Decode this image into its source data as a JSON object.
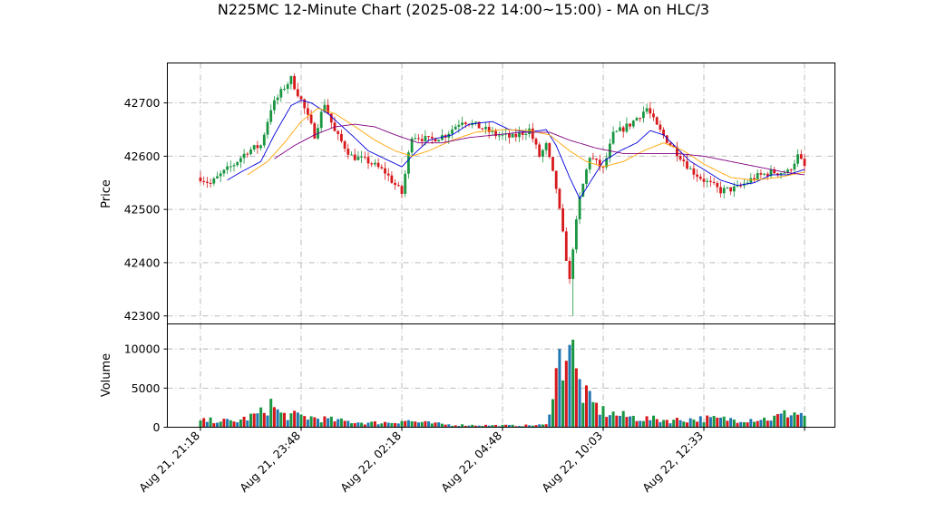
{
  "chart_data": {
    "type": "candlestick",
    "title": "N225MC 12-Minute Chart (2025-08-22 14:00~15:00) - MA on HLC/3",
    "price_panel": {
      "ylabel": "Price",
      "ylim": [
        42285,
        42775
      ],
      "yticks": [
        42300,
        42400,
        42500,
        42600,
        42700
      ],
      "ytick_labels": [
        "42300",
        "42400",
        "42500",
        "42600",
        "42700"
      ]
    },
    "volume_panel": {
      "ylabel": "Volume",
      "ylim": [
        0,
        13200
      ],
      "yticks": [
        0,
        5000,
        10000
      ],
      "ytick_labels": [
        "0",
        "5000",
        "10000"
      ]
    },
    "x": {
      "bars_total": 180,
      "ticks": [
        {
          "bar": 0,
          "label": "Aug 21, 21:18"
        },
        {
          "bar": 30,
          "label": "Aug 21, 23:48"
        },
        {
          "bar": 60,
          "label": "Aug 22, 02:18"
        },
        {
          "bar": 90,
          "label": "Aug 22, 04:48"
        },
        {
          "bar": 120,
          "label": "Aug 22, 10:03"
        },
        {
          "bar": 150,
          "label": "Aug 22, 12:33"
        },
        {
          "bar": 180,
          "label": ""
        }
      ]
    },
    "colors": {
      "up": "#1a9641",
      "down": "#d7191c",
      "ma_short": "#0000dd",
      "ma_mid": "#ffa500",
      "ma_long": "#800080",
      "volume_alt": "#1f77b4"
    },
    "close_anchors": [
      [
        0,
        42560
      ],
      [
        3,
        42548
      ],
      [
        6,
        42565
      ],
      [
        10,
        42585
      ],
      [
        14,
        42610
      ],
      [
        18,
        42620
      ],
      [
        21,
        42690
      ],
      [
        25,
        42730
      ],
      [
        27,
        42745
      ],
      [
        30,
        42705
      ],
      [
        34,
        42640
      ],
      [
        37,
        42700
      ],
      [
        40,
        42645
      ],
      [
        45,
        42600
      ],
      [
        50,
        42590
      ],
      [
        55,
        42570
      ],
      [
        60,
        42530
      ],
      [
        63,
        42640
      ],
      [
        68,
        42630
      ],
      [
        73,
        42640
      ],
      [
        78,
        42668
      ],
      [
        83,
        42655
      ],
      [
        88,
        42640
      ],
      [
        93,
        42635
      ],
      [
        98,
        42650
      ],
      [
        101,
        42600
      ],
      [
        103,
        42620
      ],
      [
        106,
        42540
      ],
      [
        110,
        42365
      ],
      [
        111,
        42430
      ],
      [
        113,
        42520
      ],
      [
        116,
        42600
      ],
      [
        120,
        42575
      ],
      [
        123,
        42640
      ],
      [
        128,
        42660
      ],
      [
        133,
        42690
      ],
      [
        136,
        42655
      ],
      [
        139,
        42630
      ],
      [
        143,
        42600
      ],
      [
        146,
        42575
      ],
      [
        150,
        42555
      ],
      [
        155,
        42535
      ],
      [
        160,
        42540
      ],
      [
        165,
        42560
      ],
      [
        170,
        42570
      ],
      [
        175,
        42570
      ],
      [
        178,
        42600
      ],
      [
        180,
        42580
      ]
    ],
    "ma_short_anchors": [
      [
        8,
        42555
      ],
      [
        12,
        42570
      ],
      [
        18,
        42590
      ],
      [
        22,
        42640
      ],
      [
        27,
        42695
      ],
      [
        30,
        42705
      ],
      [
        33,
        42700
      ],
      [
        38,
        42680
      ],
      [
        45,
        42640
      ],
      [
        50,
        42610
      ],
      [
        55,
        42595
      ],
      [
        60,
        42580
      ],
      [
        63,
        42600
      ],
      [
        68,
        42630
      ],
      [
        75,
        42640
      ],
      [
        80,
        42660
      ],
      [
        87,
        42665
      ],
      [
        92,
        42650
      ],
      [
        98,
        42645
      ],
      [
        103,
        42650
      ],
      [
        106,
        42620
      ],
      [
        110,
        42560
      ],
      [
        113,
        42520
      ],
      [
        117,
        42560
      ],
      [
        120,
        42590
      ],
      [
        125,
        42610
      ],
      [
        130,
        42625
      ],
      [
        134,
        42648
      ],
      [
        138,
        42640
      ],
      [
        142,
        42615
      ],
      [
        146,
        42590
      ],
      [
        150,
        42575
      ],
      [
        155,
        42555
      ],
      [
        160,
        42545
      ],
      [
        165,
        42550
      ],
      [
        170,
        42565
      ],
      [
        175,
        42565
      ],
      [
        180,
        42575
      ]
    ],
    "ma_mid_anchors": [
      [
        14,
        42565
      ],
      [
        20,
        42590
      ],
      [
        25,
        42625
      ],
      [
        30,
        42665
      ],
      [
        35,
        42690
      ],
      [
        40,
        42680
      ],
      [
        45,
        42660
      ],
      [
        52,
        42630
      ],
      [
        58,
        42610
      ],
      [
        63,
        42600
      ],
      [
        68,
        42610
      ],
      [
        75,
        42630
      ],
      [
        82,
        42645
      ],
      [
        90,
        42650
      ],
      [
        98,
        42648
      ],
      [
        104,
        42640
      ],
      [
        110,
        42610
      ],
      [
        115,
        42590
      ],
      [
        120,
        42580
      ],
      [
        126,
        42590
      ],
      [
        132,
        42610
      ],
      [
        138,
        42625
      ],
      [
        144,
        42610
      ],
      [
        150,
        42585
      ],
      [
        158,
        42560
      ],
      [
        165,
        42555
      ],
      [
        172,
        42560
      ],
      [
        180,
        42570
      ]
    ],
    "ma_long_anchors": [
      [
        22,
        42595
      ],
      [
        28,
        42620
      ],
      [
        34,
        42640
      ],
      [
        40,
        42655
      ],
      [
        46,
        42660
      ],
      [
        52,
        42655
      ],
      [
        58,
        42640
      ],
      [
        65,
        42625
      ],
      [
        72,
        42625
      ],
      [
        80,
        42635
      ],
      [
        88,
        42640
      ],
      [
        96,
        42645
      ],
      [
        104,
        42645
      ],
      [
        110,
        42630
      ],
      [
        118,
        42615
      ],
      [
        126,
        42605
      ],
      [
        134,
        42605
      ],
      [
        142,
        42605
      ],
      [
        150,
        42600
      ],
      [
        158,
        42590
      ],
      [
        166,
        42580
      ],
      [
        174,
        42570
      ],
      [
        180,
        42565
      ]
    ],
    "volume_profile": [
      [
        0,
        800
      ],
      [
        5,
        900
      ],
      [
        10,
        700
      ],
      [
        14,
        1200
      ],
      [
        18,
        1800
      ],
      [
        21,
        3000
      ],
      [
        24,
        1600
      ],
      [
        30,
        1400
      ],
      [
        36,
        1100
      ],
      [
        42,
        800
      ],
      [
        50,
        550
      ],
      [
        58,
        650
      ],
      [
        60,
        900
      ],
      [
        66,
        600
      ],
      [
        75,
        300
      ],
      [
        85,
        250
      ],
      [
        95,
        220
      ],
      [
        103,
        300
      ],
      [
        105,
        5500
      ],
      [
        108,
        9500
      ],
      [
        110,
        11500
      ],
      [
        112,
        6500
      ],
      [
        114,
        4500
      ],
      [
        116,
        3200
      ],
      [
        120,
        2000
      ],
      [
        125,
        1500
      ],
      [
        132,
        1100
      ],
      [
        140,
        900
      ],
      [
        150,
        1100
      ],
      [
        160,
        1000
      ],
      [
        170,
        1100
      ],
      [
        176,
        1900
      ],
      [
        180,
        1600
      ]
    ]
  }
}
